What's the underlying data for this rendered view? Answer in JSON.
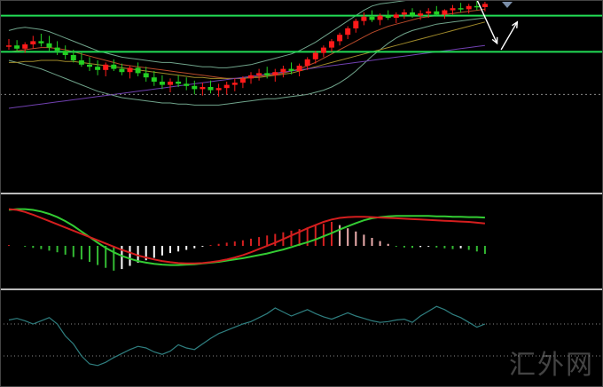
{
  "watermark": "汇外网",
  "colors": {
    "background": "#000000",
    "bull": "#ff1a1a",
    "bear": "#22d022",
    "hline": "#22dd55",
    "boll": "#6fa38a",
    "ma_fast": "#b84a2a",
    "ma_mid": "#a08a2a",
    "ma_slow": "#7040b0",
    "macd_dif": "#33cc33",
    "macd_dea": "#d41e1e",
    "hist_pos_strong": "#d42020",
    "hist_pos_weak": "#f0b0b0",
    "hist_neg_strong": "#33bb33",
    "hist_neg_weak": "#ffffff",
    "osc": "#2f7f80",
    "separator": "#bbbbbb",
    "dotted": "#888888"
  },
  "chart_data": [
    {
      "type": "candlestick",
      "y_range": [
        0,
        100
      ],
      "grid": false,
      "horizontal_levels": [
        92,
        58
      ],
      "dotted_level": 18,
      "candles": [
        [
          63,
          70,
          60,
          64
        ],
        [
          64,
          69,
          58,
          61
        ],
        [
          61,
          67,
          57,
          65
        ],
        [
          65,
          73,
          61,
          68
        ],
        [
          68,
          75,
          63,
          66
        ],
        [
          66,
          73,
          59,
          62
        ],
        [
          62,
          68,
          55,
          59
        ],
        [
          59,
          64,
          51,
          55
        ],
        [
          55,
          60,
          48,
          50
        ],
        [
          50,
          57,
          44,
          46
        ],
        [
          46,
          53,
          40,
          44
        ],
        [
          44,
          50,
          36,
          41
        ],
        [
          41,
          48,
          35,
          46
        ],
        [
          46,
          51,
          40,
          42
        ],
        [
          42,
          47,
          36,
          39
        ],
        [
          39,
          45,
          33,
          43
        ],
        [
          43,
          48,
          35,
          38
        ],
        [
          38,
          44,
          30,
          34
        ],
        [
          34,
          40,
          26,
          30
        ],
        [
          30,
          36,
          23,
          27
        ],
        [
          27,
          33,
          20,
          30
        ],
        [
          30,
          36,
          25,
          28
        ],
        [
          28,
          34,
          22,
          26
        ],
        [
          26,
          31,
          18,
          23
        ],
        [
          23,
          29,
          17,
          25
        ],
        [
          25,
          31,
          19,
          22
        ],
        [
          22,
          28,
          16,
          24
        ],
        [
          24,
          30,
          18,
          27
        ],
        [
          27,
          33,
          21,
          29
        ],
        [
          29,
          35,
          24,
          33
        ],
        [
          33,
          39,
          28,
          36
        ],
        [
          36,
          42,
          31,
          38
        ],
        [
          38,
          44,
          33,
          36
        ],
        [
          36,
          42,
          30,
          39
        ],
        [
          39,
          45,
          34,
          42
        ],
        [
          42,
          48,
          37,
          40
        ],
        [
          40,
          47,
          35,
          45
        ],
        [
          45,
          53,
          41,
          51
        ],
        [
          51,
          59,
          47,
          57
        ],
        [
          57,
          64,
          53,
          62
        ],
        [
          62,
          70,
          58,
          68
        ],
        [
          68,
          76,
          64,
          74
        ],
        [
          74,
          82,
          70,
          80
        ],
        [
          80,
          89,
          76,
          87
        ],
        [
          87,
          95,
          83,
          91
        ],
        [
          91,
          97,
          86,
          88
        ],
        [
          88,
          94,
          83,
          92
        ],
        [
          92,
          97,
          88,
          90
        ],
        [
          90,
          95,
          85,
          93
        ],
        [
          93,
          98,
          89,
          95
        ],
        [
          95,
          99,
          90,
          92
        ],
        [
          92,
          97,
          88,
          94
        ],
        [
          94,
          99,
          90,
          96
        ],
        [
          96,
          101,
          92,
          93
        ],
        [
          93,
          98,
          89,
          97
        ],
        [
          97,
          102,
          93,
          99
        ],
        [
          99,
          104,
          95,
          98
        ],
        [
          98,
          103,
          94,
          101
        ],
        [
          101,
          106,
          97,
          100
        ],
        [
          100,
          105,
          96,
          103
        ]
      ],
      "overlays": [
        {
          "name": "boll_upper",
          "values": [
            78,
            80,
            81,
            80,
            79,
            77,
            74,
            71,
            68,
            65,
            62,
            59,
            57,
            55,
            53,
            52,
            51,
            50,
            49,
            48,
            48,
            47,
            46,
            45,
            44,
            44,
            43,
            43,
            44,
            45,
            46,
            48,
            50,
            52,
            54,
            56,
            59,
            63,
            67,
            72,
            77,
            82,
            87,
            92,
            97,
            101,
            103,
            104,
            105,
            106,
            107,
            108,
            108,
            108,
            109,
            109,
            110,
            110,
            111,
            111
          ]
        },
        {
          "name": "boll_lower",
          "values": [
            50,
            48,
            46,
            44,
            42,
            39,
            36,
            33,
            30,
            27,
            24,
            21,
            19,
            17,
            15,
            14,
            13,
            12,
            11,
            10,
            10,
            9,
            9,
            8,
            8,
            8,
            8,
            9,
            10,
            11,
            12,
            13,
            14,
            14,
            15,
            16,
            17,
            18,
            20,
            22,
            25,
            29,
            34,
            40,
            47,
            54,
            60,
            66,
            71,
            75,
            78,
            80,
            82,
            84,
            85,
            86,
            87,
            88,
            89,
            90
          ]
        },
        {
          "name": "ma_fast",
          "values": [
            58,
            59,
            60,
            61,
            62,
            62,
            61,
            60,
            58,
            56,
            54,
            52,
            50,
            48,
            46,
            45,
            44,
            43,
            42,
            41,
            40,
            39,
            38,
            37,
            36,
            35,
            34,
            33,
            33,
            33,
            34,
            35,
            36,
            37,
            38,
            40,
            42,
            45,
            48,
            52,
            56,
            60,
            64,
            68,
            72,
            76,
            79,
            82,
            84,
            86,
            88,
            90,
            91,
            92,
            93,
            94,
            95,
            96,
            97,
            98
          ]
        },
        {
          "name": "ma_mid",
          "values": [
            48,
            48,
            49,
            49,
            50,
            50,
            50,
            49,
            49,
            48,
            47,
            46,
            45,
            44,
            43,
            42,
            41,
            40,
            39,
            38,
            37,
            36,
            35,
            34,
            34,
            33,
            33,
            33,
            33,
            33,
            34,
            34,
            35,
            36,
            37,
            38,
            40,
            42,
            44,
            46,
            48,
            50,
            52,
            54,
            56,
            58,
            60,
            62,
            64,
            66,
            68,
            70,
            72,
            74,
            76,
            78,
            80,
            82,
            84,
            86
          ]
        },
        {
          "name": "ma_slow",
          "values": [
            5,
            6,
            7,
            8,
            9,
            10,
            11,
            12,
            13,
            14,
            15,
            16,
            17,
            18,
            19,
            20,
            21,
            22,
            23,
            24,
            25,
            26,
            27,
            28,
            29,
            30,
            31,
            32,
            33,
            34,
            35,
            36,
            37,
            38,
            39,
            40,
            41,
            42,
            43,
            44,
            45,
            46,
            47,
            48,
            49,
            50,
            51,
            52,
            53,
            54,
            55,
            56,
            57,
            58,
            59,
            60,
            61,
            62,
            63,
            64
          ]
        }
      ],
      "arrows": [
        {
          "from": [
            58,
            107
          ],
          "to": [
            60.5,
            66
          ],
          "color": "#ffffff"
        },
        {
          "from": [
            61,
            60
          ],
          "to": [
            63,
            86
          ],
          "color": "#ffffff"
        }
      ]
    },
    {
      "type": "macd",
      "y_range": [
        -1,
        1
      ],
      "series": [
        {
          "key": "dif",
          "values": [
            0.9,
            0.92,
            0.92,
            0.9,
            0.86,
            0.8,
            0.72,
            0.62,
            0.5,
            0.36,
            0.22,
            0.08,
            -0.05,
            -0.16,
            -0.25,
            -0.32,
            -0.38,
            -0.42,
            -0.45,
            -0.47,
            -0.48,
            -0.48,
            -0.47,
            -0.46,
            -0.44,
            -0.42,
            -0.4,
            -0.37,
            -0.34,
            -0.31,
            -0.27,
            -0.23,
            -0.19,
            -0.14,
            -0.09,
            -0.03,
            0.03,
            0.09,
            0.16,
            0.24,
            0.32,
            0.41,
            0.49,
            0.57,
            0.64,
            0.69,
            0.72,
            0.74,
            0.75,
            0.75,
            0.75,
            0.75,
            0.75,
            0.74,
            0.74,
            0.73,
            0.73,
            0.72,
            0.72,
            0.71
          ]
        },
        {
          "key": "dea",
          "values": [
            0.92,
            0.9,
            0.85,
            0.78,
            0.7,
            0.62,
            0.54,
            0.46,
            0.38,
            0.3,
            0.22,
            0.14,
            0.06,
            -0.02,
            -0.1,
            -0.17,
            -0.24,
            -0.29,
            -0.34,
            -0.38,
            -0.41,
            -0.43,
            -0.44,
            -0.44,
            -0.43,
            -0.41,
            -0.38,
            -0.34,
            -0.29,
            -0.23,
            -0.16,
            -0.08,
            0.0,
            0.08,
            0.17,
            0.26,
            0.35,
            0.44,
            0.52,
            0.6,
            0.66,
            0.7,
            0.72,
            0.73,
            0.73,
            0.72,
            0.71,
            0.7,
            0.69,
            0.68,
            0.67,
            0.66,
            0.65,
            0.64,
            0.63,
            0.62,
            0.61,
            0.6,
            0.58,
            0.56
          ]
        }
      ],
      "histogram": [
        0.02,
        0.0,
        -0.02,
        -0.05,
        -0.08,
        -0.12,
        -0.16,
        -0.22,
        -0.28,
        -0.34,
        -0.4,
        -0.48,
        -0.55,
        -0.62,
        -0.58,
        -0.5,
        -0.42,
        -0.36,
        -0.3,
        -0.24,
        -0.18,
        -0.14,
        -0.1,
        -0.06,
        -0.02,
        0.02,
        0.05,
        0.08,
        0.11,
        0.14,
        0.18,
        0.22,
        0.26,
        0.3,
        0.34,
        0.38,
        0.42,
        0.46,
        0.5,
        0.55,
        0.6,
        0.52,
        0.44,
        0.36,
        0.28,
        0.2,
        0.12,
        0.05,
        -0.02,
        -0.04,
        -0.05,
        -0.03,
        -0.02,
        -0.04,
        -0.06,
        -0.08,
        -0.06,
        -0.1,
        -0.14,
        -0.2
      ]
    },
    {
      "type": "line",
      "y_range": [
        0,
        100
      ],
      "grid": false,
      "levels": [
        70,
        30
      ],
      "values": [
        75,
        77,
        74,
        70,
        74,
        78,
        70,
        55,
        45,
        30,
        20,
        18,
        22,
        28,
        33,
        38,
        42,
        40,
        35,
        32,
        36,
        44,
        40,
        38,
        45,
        52,
        58,
        62,
        66,
        70,
        73,
        78,
        83,
        90,
        85,
        80,
        84,
        88,
        83,
        79,
        76,
        80,
        84,
        80,
        77,
        74,
        72,
        73,
        75,
        76,
        72,
        80,
        86,
        92,
        88,
        82,
        78,
        72,
        66,
        70
      ]
    }
  ]
}
